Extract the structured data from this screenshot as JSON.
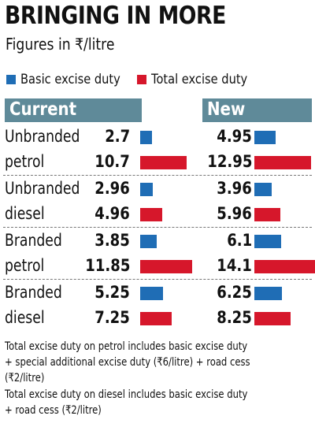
{
  "title": "BRINGING IN MORE",
  "subtitle": "Figures in ₹/litre",
  "colors": {
    "basic": "#1f6db5",
    "total": "#d6172b",
    "header": "#5f8a99"
  },
  "chart_data": {
    "type": "bar",
    "title": "BRINGING IN MORE",
    "subtitle": "Figures in ₹/litre",
    "legend": [
      "Basic excise duty",
      "Total excise duty"
    ],
    "panels": [
      "Current",
      "New"
    ],
    "groups": [
      {
        "label_line1": "Unbranded",
        "label_line2": "petrol",
        "basic_current": 2.7,
        "total_current": 10.7,
        "basic_new": 4.95,
        "total_new": 12.95
      },
      {
        "label_line1": "Unbranded",
        "label_line2": "diesel",
        "basic_current": 2.96,
        "total_current": 4.96,
        "basic_new": 3.96,
        "total_new": 5.96
      },
      {
        "label_line1": "Branded",
        "label_line2": "petrol",
        "basic_current": 3.85,
        "total_current": 11.85,
        "basic_new": 6.1,
        "total_new": 14.1
      },
      {
        "label_line1": "Branded",
        "label_line2": "diesel",
        "basic_current": 5.25,
        "total_current": 7.25,
        "basic_new": 6.25,
        "total_new": 8.25
      }
    ],
    "value_labels": {
      "current": [
        [
          "2.7",
          "10.7"
        ],
        [
          "2.96",
          "4.96"
        ],
        [
          "3.85",
          "11.85"
        ],
        [
          "5.25",
          "7.25"
        ]
      ],
      "new": [
        [
          "4.95",
          "12.95"
        ],
        [
          "3.96",
          "5.96"
        ],
        [
          "6.1",
          "14.1"
        ],
        [
          "6.25",
          "8.25"
        ]
      ]
    }
  },
  "notes": {
    "petrol": [
      "Total excise duty on petrol includes basic excise duty",
      "+ special additional excise duty (₹6/litre) + road cess",
      "(₹2/litre)"
    ],
    "diesel": [
      "Total excise duty on diesel includes basic excise duty",
      "+ road cess (₹2/litre)"
    ]
  }
}
